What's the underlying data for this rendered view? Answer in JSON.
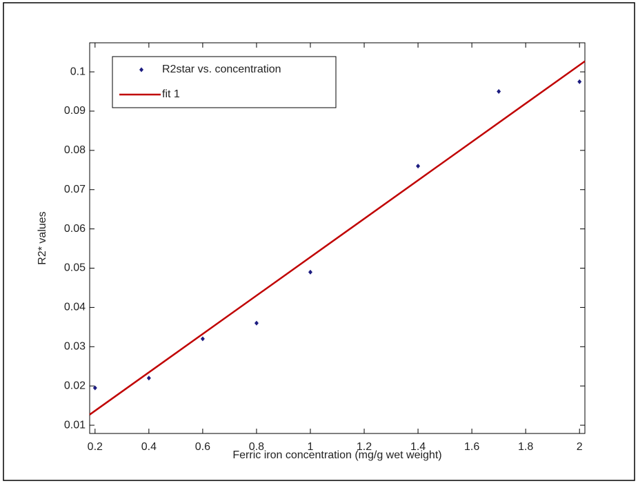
{
  "chart_data": {
    "type": "scatter",
    "xlabel": "Ferric iron concentration (mg/g wet weight)",
    "ylabel": "R2* values",
    "xlim": [
      0.18,
      2.02
    ],
    "ylim": [
      0.0079,
      0.1074
    ],
    "xticks": [
      0.2,
      0.4,
      0.6,
      0.8,
      1,
      1.2,
      1.4,
      1.6,
      1.8,
      2
    ],
    "yticks": [
      0.01,
      0.02,
      0.03,
      0.04,
      0.05,
      0.06,
      0.07,
      0.08,
      0.09,
      0.1
    ],
    "legend": "upper-left",
    "series": [
      {
        "name": "R2star vs. concentration",
        "color": "#1c1c80",
        "type": "scatter",
        "x": [
          0.2,
          0.4,
          0.6,
          0.8,
          1,
          1.4,
          1.7,
          2
        ],
        "values": [
          0.0195,
          0.022,
          0.032,
          0.036,
          0.049,
          0.076,
          0.095,
          0.0975
        ]
      },
      {
        "name": "fit 1",
        "color": "#c00000",
        "type": "line",
        "x": [
          0.18,
          2.02
        ],
        "values": [
          0.0127,
          0.1027
        ]
      }
    ]
  }
}
